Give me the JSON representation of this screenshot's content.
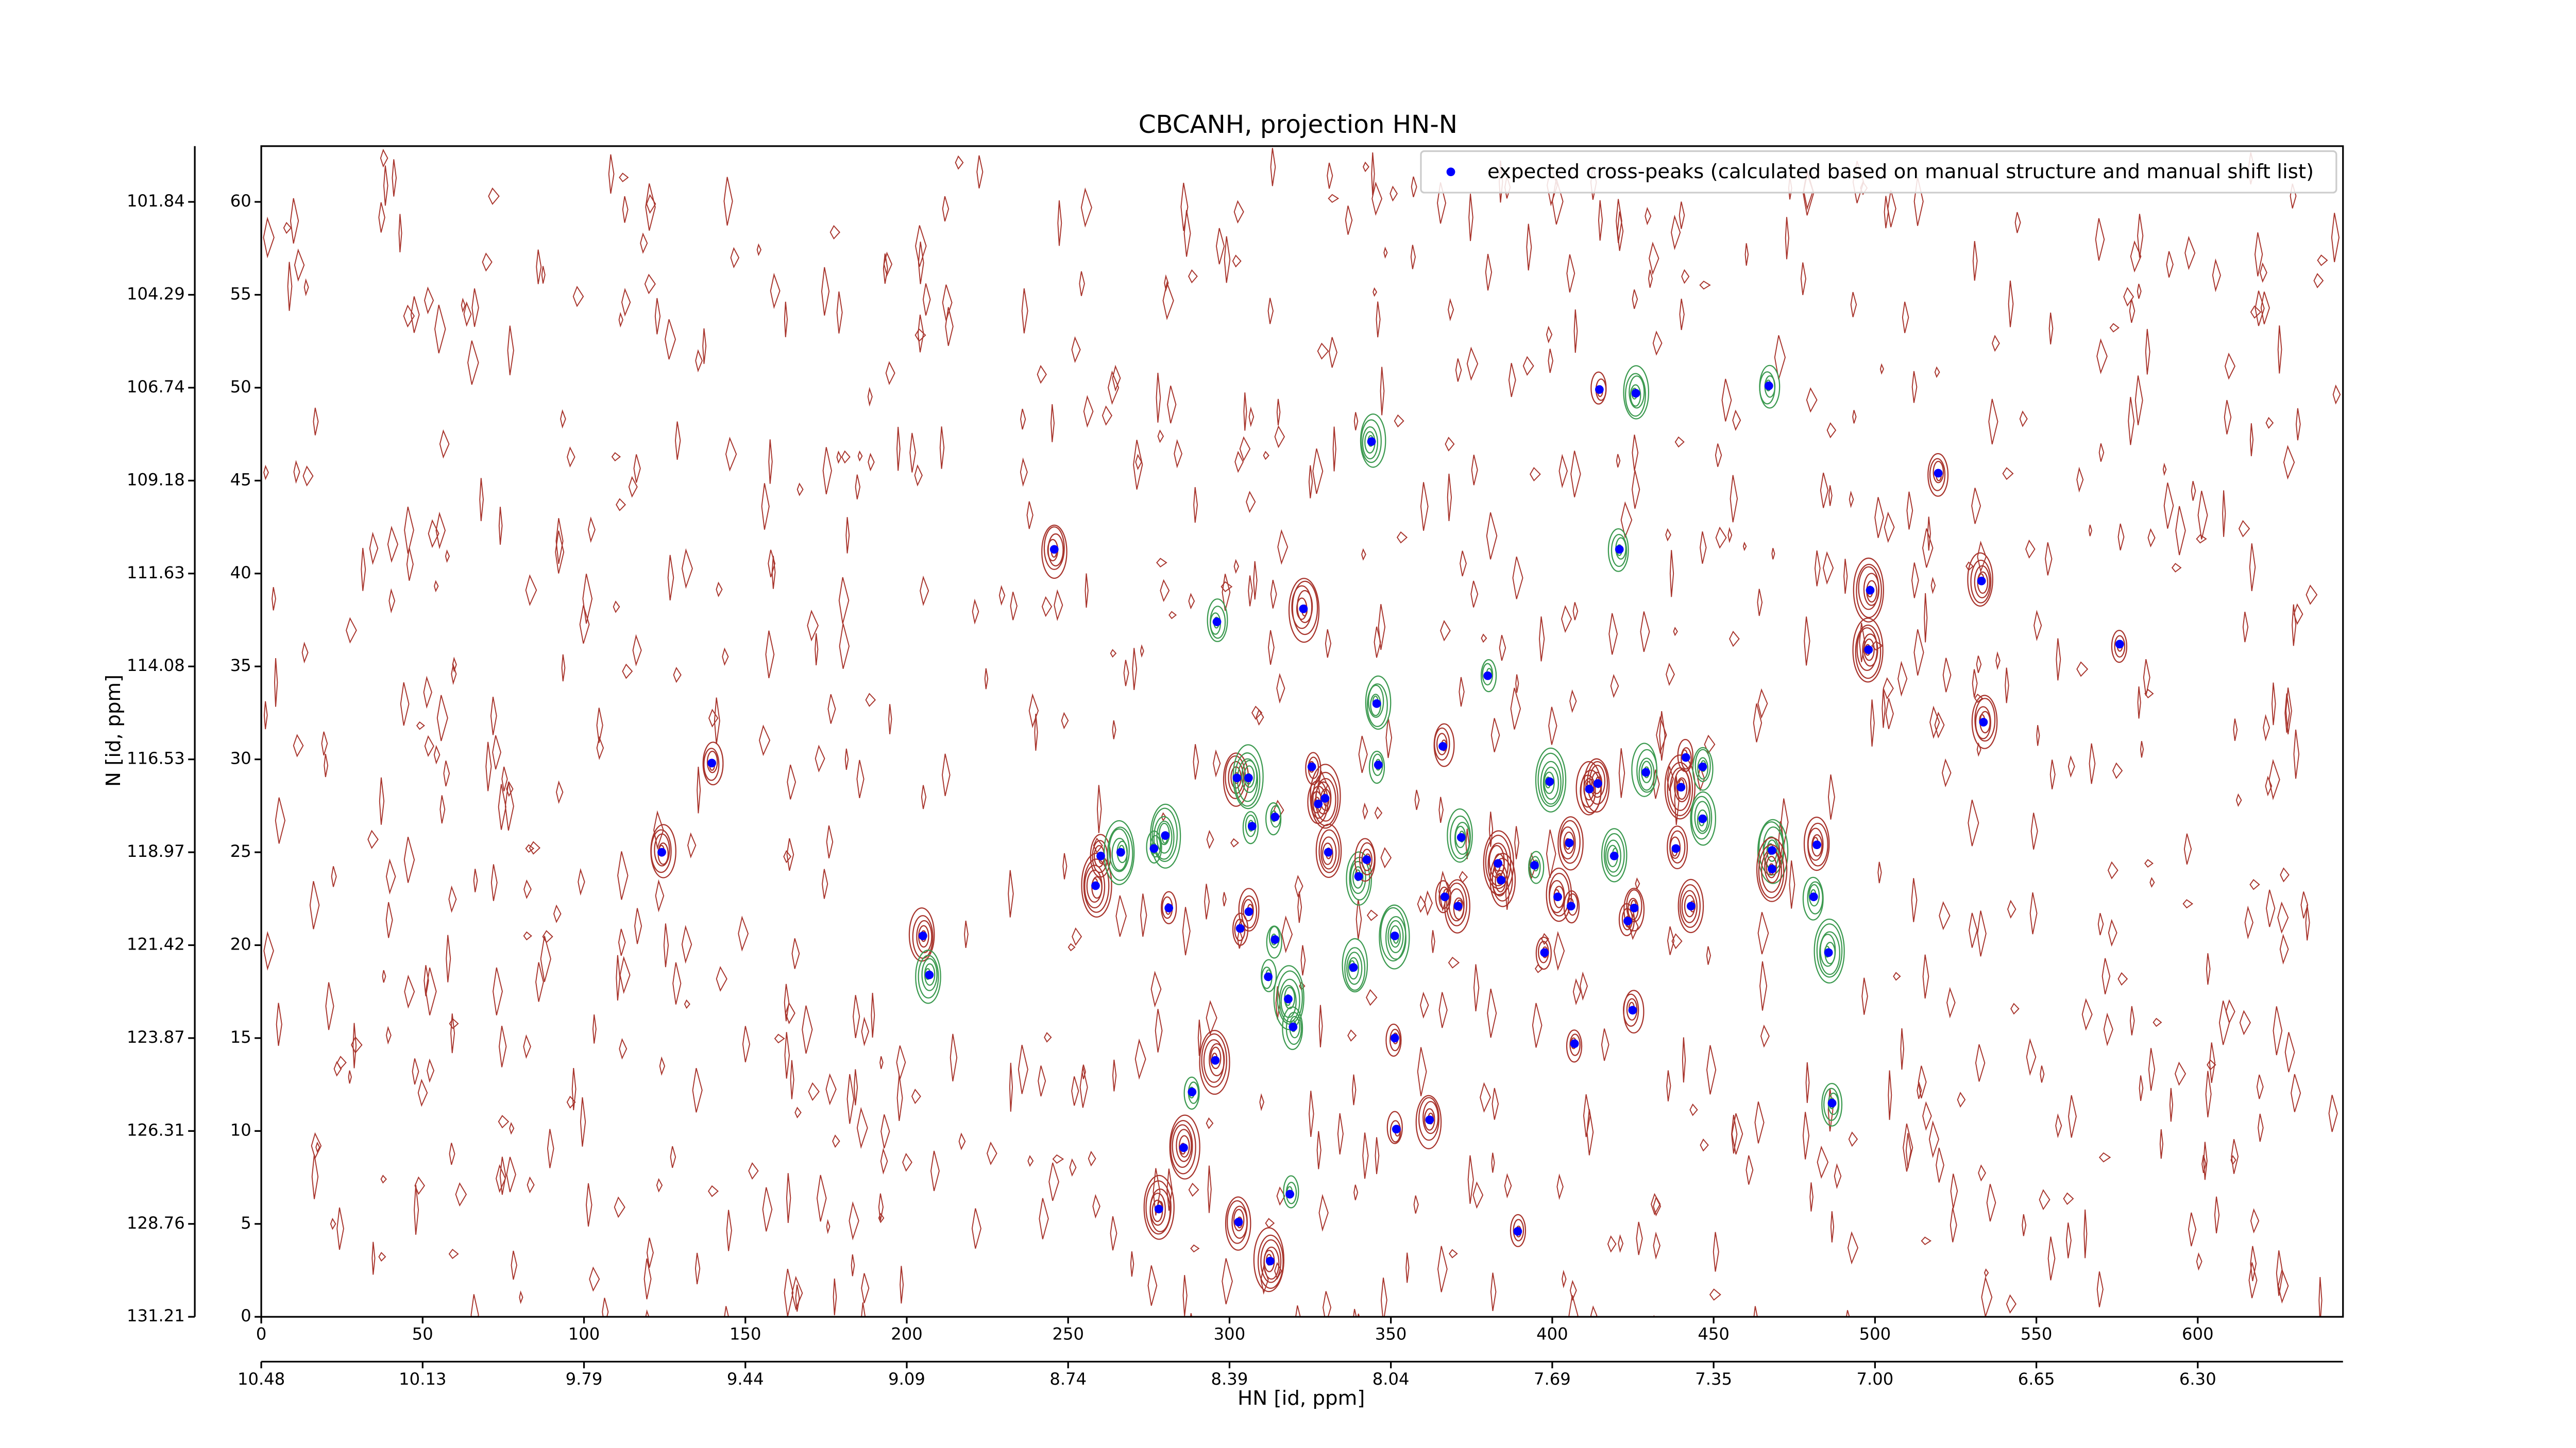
{
  "chart_data": {
    "type": "scatter",
    "title": "CBCANH, projection HN-N",
    "x_label": "HN [id, ppm]",
    "y_label": "N [id, ppm]",
    "legend": "upper right",
    "series": [
      {
        "name": "expected cross-peaks (calculated based on manual structure and manual shift list)",
        "color": "#0000ff",
        "x": [
          124.1,
          139.6,
          205.0,
          207.0,
          245.7,
          258.5,
          260.1,
          266.3,
          276.6,
          280.1,
          281.2,
          278.1,
          285.8,
          288.4,
          295.6,
          296.1,
          302.8,
          302.3,
          305.9,
          307.0,
          306.0,
          303.3,
          312.6,
          312.0,
          314.1,
          314.1,
          318.2,
          319.7,
          318.7,
          322.9,
          325.5,
          327.5,
          329.6,
          330.6,
          338.4,
          340.0,
          342.5,
          344.0,
          345.6,
          346.1,
          351.2,
          351.2,
          351.7,
          362.0,
          366.1,
          366.7,
          370.8,
          371.8,
          380.0,
          383.2,
          384.2,
          389.3,
          394.5,
          397.6,
          399.2,
          401.7,
          405.3,
          405.8,
          406.9,
          411.5,
          414.1,
          414.6,
          419.2,
          420.8,
          423.4,
          424.9,
          425.4,
          425.9,
          429.0,
          438.3,
          439.9,
          441.4,
          443.0,
          446.6,
          446.6,
          467.1,
          468.1,
          468.1,
          481.0,
          482.0,
          485.6,
          486.7,
          498.0,
          498.5,
          519.6,
          533.0,
          533.6,
          575.8
        ],
        "values": [
          25.0,
          29.8,
          20.5,
          18.4,
          41.3,
          23.2,
          24.8,
          25.0,
          25.2,
          25.9,
          22.0,
          5.8,
          9.1,
          12.1,
          13.8,
          37.4,
          5.1,
          29.0,
          29.0,
          26.4,
          21.8,
          20.9,
          3.0,
          18.3,
          20.3,
          26.9,
          17.1,
          15.6,
          6.6,
          38.1,
          29.6,
          27.6,
          27.9,
          25.0,
          18.8,
          23.7,
          24.6,
          47.1,
          33.0,
          29.7,
          20.5,
          15.0,
          10.1,
          10.6,
          30.7,
          22.6,
          22.1,
          25.8,
          34.5,
          24.4,
          23.5,
          4.6,
          24.3,
          19.6,
          28.8,
          22.6,
          25.5,
          22.1,
          14.7,
          28.4,
          28.7,
          49.9,
          24.8,
          41.3,
          21.3,
          16.5,
          22.0,
          49.7,
          29.3,
          25.2,
          28.5,
          30.1,
          22.1,
          26.8,
          29.6,
          50.1,
          25.1,
          24.1,
          22.6,
          25.4,
          19.6,
          11.5,
          35.9,
          39.1,
          45.4,
          39.6,
          32.0,
          36.2
        ]
      }
    ],
    "xlim": [
      0,
      645
    ],
    "ylim": [
      0,
      63
    ],
    "xticks": [
      0,
      50,
      100,
      150,
      200,
      250,
      300,
      350,
      400,
      450,
      500,
      550,
      600
    ],
    "yticks": [
      0,
      5,
      10,
      15,
      20,
      25,
      30,
      35,
      40,
      45,
      50,
      55,
      60
    ],
    "xticks_ppm": [
      {
        "value": 0,
        "label": "10.48"
      },
      {
        "value": 50,
        "label": "10.13"
      },
      {
        "value": 100,
        "label": "9.79"
      },
      {
        "value": 150,
        "label": "9.44"
      },
      {
        "value": 200,
        "label": "9.09"
      },
      {
        "value": 250,
        "label": "8.74"
      },
      {
        "value": 300,
        "label": "8.39"
      },
      {
        "value": 350,
        "label": "8.04"
      },
      {
        "value": 400,
        "label": "7.69"
      },
      {
        "value": 450,
        "label": "7.35"
      },
      {
        "value": 500,
        "label": "7.00"
      },
      {
        "value": 550,
        "label": "6.65"
      },
      {
        "value": 600,
        "label": "6.30"
      }
    ],
    "yticks_ppm": [
      {
        "value": 0,
        "label": "131.21"
      },
      {
        "value": 5,
        "label": "128.76"
      },
      {
        "value": 10,
        "label": "126.31"
      },
      {
        "value": 15,
        "label": "123.87"
      },
      {
        "value": 20,
        "label": "121.42"
      },
      {
        "value": 25,
        "label": "118.97"
      },
      {
        "value": 30,
        "label": "116.53"
      },
      {
        "value": 35,
        "label": "114.08"
      },
      {
        "value": 40,
        "label": "111.63"
      },
      {
        "value": 45,
        "label": "109.18"
      },
      {
        "value": 50,
        "label": "106.74"
      },
      {
        "value": 55,
        "label": "104.29"
      },
      {
        "value": 60,
        "label": "101.84"
      }
    ]
  }
}
